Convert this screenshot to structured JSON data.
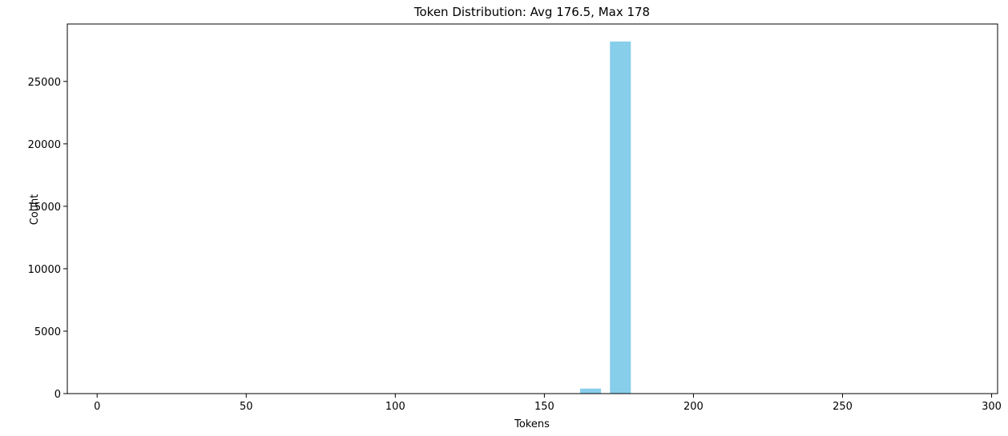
{
  "chart_data": {
    "type": "bar",
    "title": "Token Distribution: Avg 176.5, Max 178",
    "xlabel": "Tokens",
    "ylabel": "Count",
    "xlim": [
      -10,
      302
    ],
    "ylim": [
      0,
      29600
    ],
    "xticks": [
      0,
      50,
      100,
      150,
      200,
      250,
      300
    ],
    "yticks": [
      0,
      5000,
      10000,
      15000,
      20000,
      25000
    ],
    "bar_width": 7,
    "bar_color": "#87CEEB",
    "bars": [
      {
        "x": 165.5,
        "value": 400
      },
      {
        "x": 175.5,
        "value": 28200
      }
    ],
    "grid": false,
    "legend": "none"
  }
}
